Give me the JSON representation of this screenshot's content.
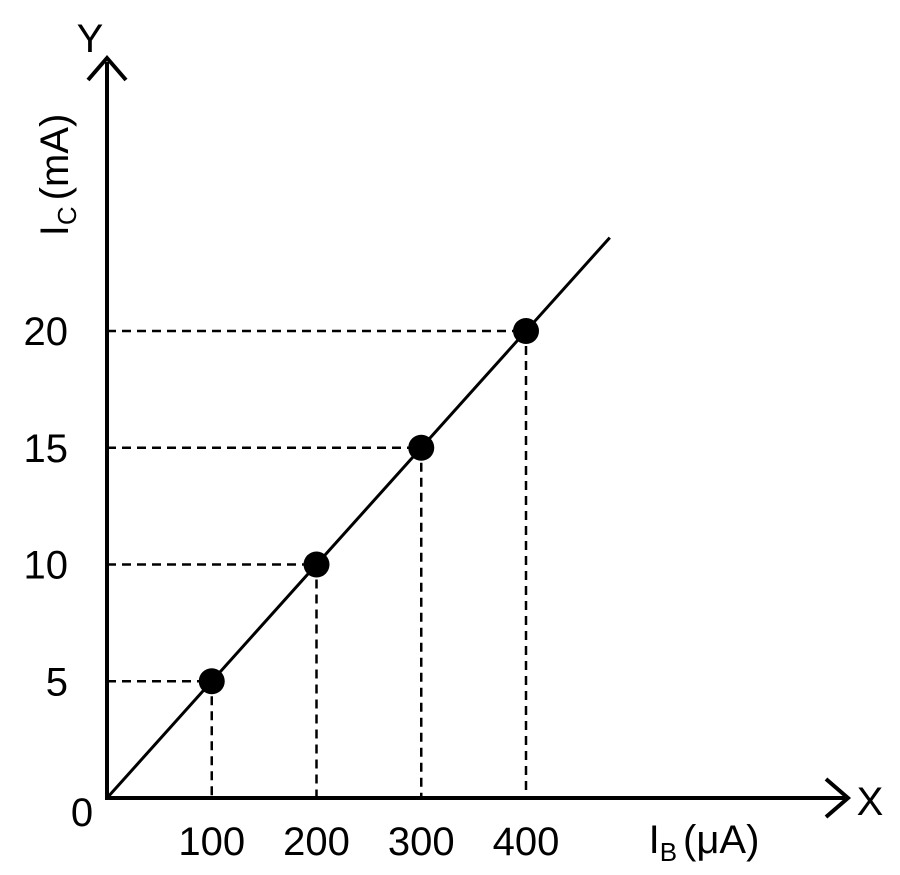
{
  "chart_data": {
    "type": "scatter",
    "x_axis": {
      "letter": "X",
      "title_main": "I",
      "title_sub": "B",
      "title_unit": "(μA)"
    },
    "y_axis": {
      "letter": "Y",
      "title_main": "I",
      "title_sub": "C",
      "title_unit": "(mA)"
    },
    "origin_label": "0",
    "x_ticks": [
      "100",
      "200",
      "300",
      "400"
    ],
    "y_ticks": [
      "5",
      "10",
      "15",
      "20"
    ],
    "points": [
      {
        "x": 100,
        "y": 5
      },
      {
        "x": 200,
        "y": 10
      },
      {
        "x": 300,
        "y": 15
      },
      {
        "x": 400,
        "y": 20
      }
    ],
    "fit_line": {
      "x": [
        0,
        480
      ],
      "y": [
        0,
        24
      ]
    },
    "dashed_guides": true,
    "grid": false
  }
}
